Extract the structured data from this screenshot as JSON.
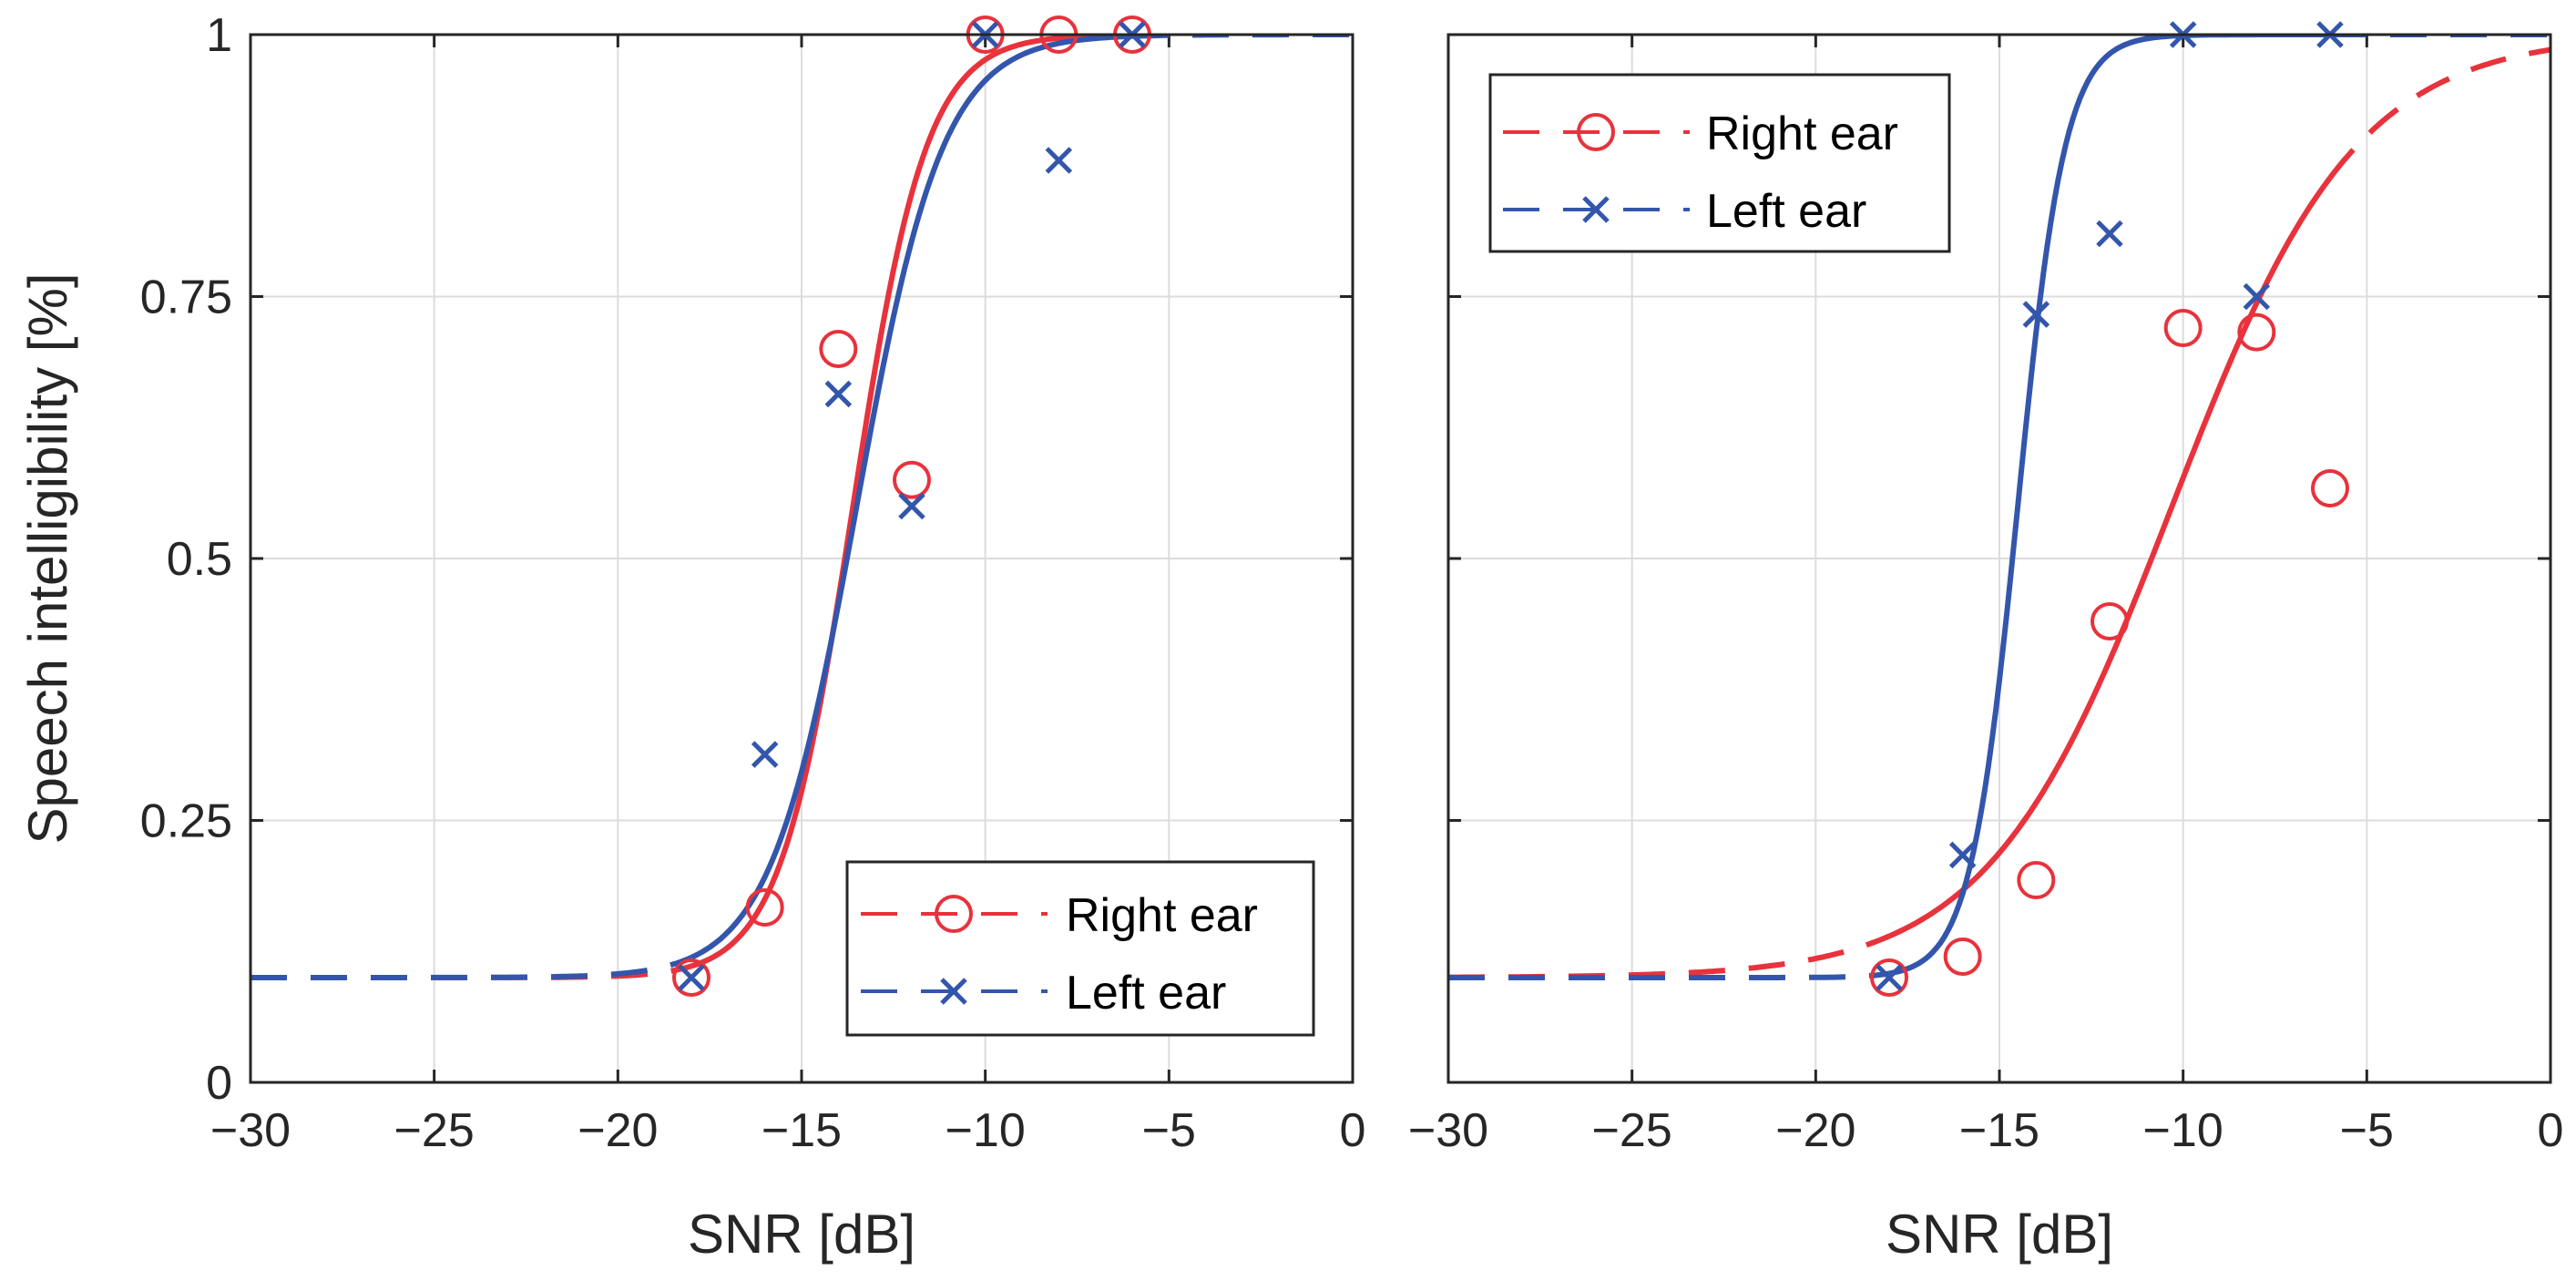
{
  "colors": {
    "right": "#e8323c",
    "left": "#3356ac",
    "axis": "#262626",
    "grid": "#dcdcdc"
  },
  "chart_data": [
    {
      "type": "line",
      "panel": "left",
      "xlabel": "SNR [dB]",
      "ylabel": "Speech intelligibility [%]",
      "xlim": [
        -30,
        0
      ],
      "ylim": [
        0,
        1
      ],
      "xticks": [
        -30,
        -25,
        -20,
        -15,
        -10,
        -5,
        0
      ],
      "xtick_labels": [
        "−30",
        "−25",
        "−20",
        "−15",
        "−10",
        "−5",
        "0"
      ],
      "yticks": [
        0,
        0.25,
        0.5,
        0.75,
        1
      ],
      "ytick_labels": [
        "0",
        "0.25",
        "0.5",
        "0.75",
        "1"
      ],
      "grid": true,
      "legend_position": "bottom-right",
      "fit_range": [
        -18,
        -6
      ],
      "series": [
        {
          "name": "Right ear",
          "key": "right",
          "marker": "circle",
          "x": [
            -18,
            -16,
            -14,
            -12,
            -10,
            -8,
            -6
          ],
          "y": [
            0.1,
            0.167,
            0.7,
            0.575,
            1.0,
            1.0,
            1.0
          ],
          "fit": {
            "floor": 0.1,
            "mid": -13.6,
            "slope": 1.0
          }
        },
        {
          "name": "Left ear",
          "key": "left",
          "marker": "x",
          "x": [
            -18,
            -16,
            -14,
            -12,
            -10,
            -8,
            -6
          ],
          "y": [
            0.1,
            0.313,
            0.657,
            0.55,
            1.0,
            0.88,
            1.0
          ],
          "fit": {
            "floor": 0.1,
            "mid": -13.5,
            "slope": 0.85
          }
        }
      ]
    },
    {
      "type": "line",
      "panel": "right",
      "xlabel": "SNR [dB]",
      "xlim": [
        -30,
        0
      ],
      "ylim": [
        0,
        1
      ],
      "xticks": [
        -30,
        -25,
        -20,
        -15,
        -10,
        -5,
        0
      ],
      "xtick_labels": [
        "−30",
        "−25",
        "−20",
        "−15",
        "−10",
        "−5",
        "0"
      ],
      "yticks": [
        0,
        0.25,
        0.5,
        0.75,
        1
      ],
      "grid": true,
      "legend_position": "top-left",
      "fit_range": [
        -18,
        -6
      ],
      "series": [
        {
          "name": "Right ear",
          "key": "right",
          "marker": "circle",
          "x": [
            -18,
            -16,
            -14,
            -12,
            -10,
            -8,
            -6
          ],
          "y": [
            0.1,
            0.12,
            0.193,
            0.44,
            0.72,
            0.716,
            0.567
          ],
          "fit": {
            "floor": 0.1,
            "mid": -10.3,
            "slope": 0.4
          }
        },
        {
          "name": "Left ear",
          "key": "left",
          "marker": "x",
          "x": [
            -18,
            -16,
            -14,
            -12,
            -10,
            -8,
            -6
          ],
          "y": [
            0.1,
            0.217,
            0.733,
            0.81,
            1.0,
            0.75,
            1.0
          ],
          "fit": {
            "floor": 0.1,
            "mid": -14.5,
            "slope": 1.55
          }
        }
      ]
    }
  ]
}
